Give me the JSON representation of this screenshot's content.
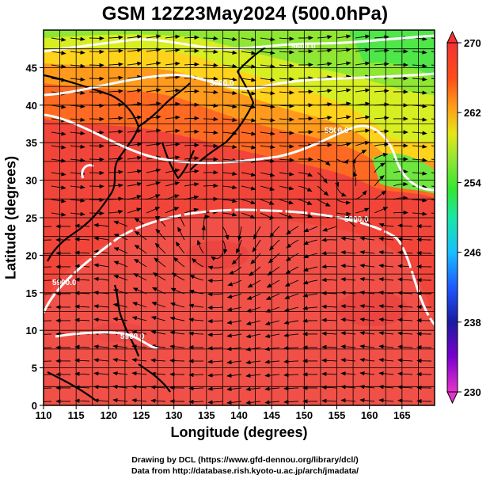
{
  "title": "GSM 12Z23May2024 (500.0hPa)",
  "xlabel": "Longitude (degrees)",
  "ylabel": "Latitude  (degrees)",
  "credits": {
    "line1": "Drawing by DCL (https://www.gfd-dennou.org/library/dcl/)",
    "line2": "Data from http://database.rish.kyoto-u.ac.jp/arch/jmadata/"
  },
  "map": {
    "lon_range": [
      110,
      170
    ],
    "lat_range": [
      0,
      50
    ],
    "lon_ticks": [
      110,
      115,
      120,
      125,
      130,
      135,
      140,
      145,
      150,
      155,
      160,
      165
    ],
    "lat_ticks": [
      0,
      5,
      10,
      15,
      20,
      25,
      30,
      35,
      40,
      45
    ],
    "grid": true,
    "field": "temperature",
    "contours": {
      "field": "geopotential height",
      "labels": [
        "5600.0",
        "5700.0",
        "5800.0",
        "5900.0",
        "5900.0",
        "5900.0"
      ]
    },
    "overlay": "streamlines",
    "colors": {
      "grid": "#000000",
      "contour": "#ffffff",
      "coastline": "#000000"
    }
  },
  "colorbar": {
    "min": 230,
    "max": 270,
    "tick_labels": [
      "270",
      "262",
      "254",
      "246",
      "238",
      "230"
    ],
    "stops": [
      "#e633cc",
      "#7a00cc",
      "#1a1aa0",
      "#1f59ff",
      "#19bfff",
      "#1ae6a6",
      "#33e633",
      "#8ce633",
      "#e6e619",
      "#ff9919",
      "#ff4d19",
      "#f23333"
    ]
  }
}
